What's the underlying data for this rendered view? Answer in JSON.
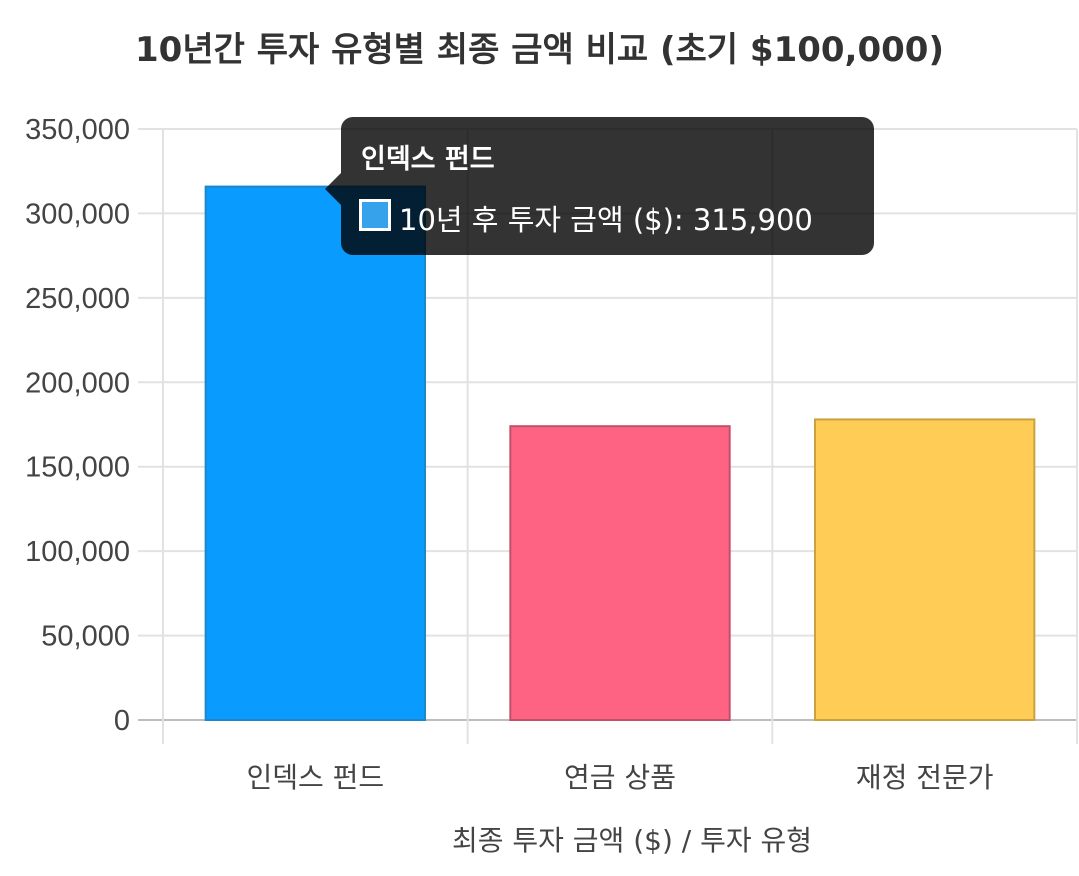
{
  "chart_data": {
    "type": "bar",
    "title": "10년간 투자 유형별 최종 금액 비교 (초기 $100,000)",
    "categories": [
      "인덱스 펀드",
      "연금 상품",
      "재정 전문가"
    ],
    "series": [
      {
        "name": "10년 후 투자 금액 ($)",
        "values": [
          315900,
          174000,
          178000
        ],
        "colors": [
          "#0a9bff",
          "#ff6384",
          "#ffcd56"
        ],
        "border_colors": [
          "#1f86c9",
          "#c2506a",
          "#c9a23e"
        ]
      }
    ],
    "xlabel": "최종 투자 금액 ($) / 투자 유형",
    "ylabel": "",
    "ylim": [
      0,
      350000
    ],
    "yticks": [
      "0",
      "50,000",
      "100,000",
      "150,000",
      "200,000",
      "250,000",
      "300,000",
      "350,000"
    ],
    "grid": true,
    "legend": "none"
  },
  "tooltip": {
    "title": "인덱스 펀드",
    "body": "10년 후 투자 금액 ($): 315,900",
    "swatch_color": "#36a2eb"
  }
}
